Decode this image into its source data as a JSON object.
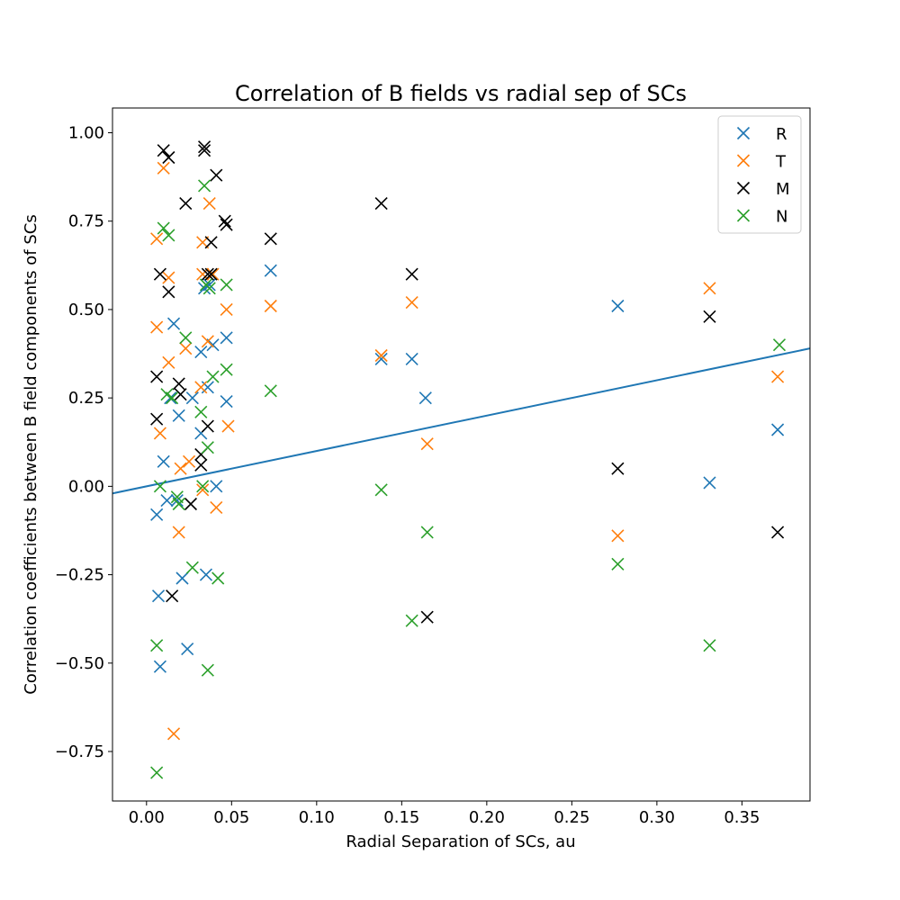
{
  "chart_data": {
    "type": "scatter",
    "title": "Correlation of B fields vs radial sep of SCs",
    "xlabel": "Radial Separation of SCs, au",
    "ylabel": "Correlation coefficients between B field components of SCs",
    "xlim": [
      -0.02,
      0.39
    ],
    "ylim": [
      -0.89,
      1.07
    ],
    "x_ticks": [
      0.0,
      0.05,
      0.1,
      0.15,
      0.2,
      0.25,
      0.3,
      0.35
    ],
    "x_tick_labels": [
      "0.00",
      "0.05",
      "0.10",
      "0.15",
      "0.20",
      "0.25",
      "0.30",
      "0.35"
    ],
    "y_ticks": [
      -0.75,
      -0.5,
      -0.25,
      0.0,
      0.25,
      0.5,
      0.75,
      1.0
    ],
    "y_tick_labels": [
      "−0.75",
      "−0.50",
      "−0.25",
      "0.00",
      "0.25",
      "0.50",
      "0.75",
      "1.00"
    ],
    "legend_position": "top-right",
    "grid": false,
    "series": [
      {
        "name": "R",
        "color": "#1f77b4",
        "marker": "x",
        "points": [
          [
            0.006,
            -0.08
          ],
          [
            0.008,
            -0.51
          ],
          [
            0.007,
            -0.31
          ],
          [
            0.01,
            0.07
          ],
          [
            0.012,
            -0.04
          ],
          [
            0.014,
            0.25
          ],
          [
            0.016,
            0.46
          ],
          [
            0.018,
            -0.04
          ],
          [
            0.019,
            0.2
          ],
          [
            0.021,
            -0.26
          ],
          [
            0.024,
            -0.46
          ],
          [
            0.027,
            0.25
          ],
          [
            0.032,
            0.38
          ],
          [
            0.032,
            0.15
          ],
          [
            0.034,
            0.56
          ],
          [
            0.035,
            -0.25
          ],
          [
            0.036,
            0.28
          ],
          [
            0.037,
            0.57
          ],
          [
            0.039,
            0.4
          ],
          [
            0.041,
            0.0
          ],
          [
            0.047,
            0.42
          ],
          [
            0.047,
            0.24
          ],
          [
            0.073,
            0.61
          ],
          [
            0.138,
            0.36
          ],
          [
            0.156,
            0.36
          ],
          [
            0.164,
            0.25
          ],
          [
            0.277,
            0.51
          ],
          [
            0.331,
            0.01
          ],
          [
            0.371,
            0.16
          ]
        ]
      },
      {
        "name": "T",
        "color": "#ff7f0e",
        "marker": "x",
        "points": [
          [
            0.006,
            0.7
          ],
          [
            0.006,
            0.45
          ],
          [
            0.008,
            0.15
          ],
          [
            0.01,
            0.9
          ],
          [
            0.013,
            0.59
          ],
          [
            0.013,
            0.35
          ],
          [
            0.016,
            -0.7
          ],
          [
            0.019,
            -0.13
          ],
          [
            0.02,
            0.05
          ],
          [
            0.023,
            0.39
          ],
          [
            0.025,
            0.07
          ],
          [
            0.032,
            0.28
          ],
          [
            0.033,
            0.6
          ],
          [
            0.033,
            0.69
          ],
          [
            0.033,
            -0.01
          ],
          [
            0.036,
            0.41
          ],
          [
            0.037,
            0.8
          ],
          [
            0.039,
            0.6
          ],
          [
            0.041,
            -0.06
          ],
          [
            0.047,
            0.5
          ],
          [
            0.048,
            0.17
          ],
          [
            0.073,
            0.51
          ],
          [
            0.138,
            0.37
          ],
          [
            0.156,
            0.52
          ],
          [
            0.165,
            0.12
          ],
          [
            0.277,
            -0.14
          ],
          [
            0.331,
            0.56
          ],
          [
            0.371,
            0.31
          ]
        ]
      },
      {
        "name": "M",
        "color": "#000000",
        "marker": "x",
        "points": [
          [
            0.006,
            0.31
          ],
          [
            0.006,
            0.19
          ],
          [
            0.008,
            0.6
          ],
          [
            0.01,
            0.95
          ],
          [
            0.013,
            0.93
          ],
          [
            0.013,
            0.55
          ],
          [
            0.015,
            -0.31
          ],
          [
            0.019,
            0.29
          ],
          [
            0.02,
            0.26
          ],
          [
            0.023,
            0.8
          ],
          [
            0.026,
            -0.05
          ],
          [
            0.032,
            0.09
          ],
          [
            0.032,
            0.06
          ],
          [
            0.034,
            0.96
          ],
          [
            0.034,
            0.95
          ],
          [
            0.036,
            0.6
          ],
          [
            0.036,
            0.17
          ],
          [
            0.038,
            0.6
          ],
          [
            0.038,
            0.69
          ],
          [
            0.041,
            0.88
          ],
          [
            0.046,
            0.75
          ],
          [
            0.047,
            0.74
          ],
          [
            0.073,
            0.7
          ],
          [
            0.138,
            0.8
          ],
          [
            0.156,
            0.6
          ],
          [
            0.165,
            -0.37
          ],
          [
            0.277,
            0.05
          ],
          [
            0.331,
            0.48
          ],
          [
            0.371,
            -0.13
          ]
        ]
      },
      {
        "name": "N",
        "color": "#2ca02c",
        "marker": "x",
        "points": [
          [
            0.006,
            -0.81
          ],
          [
            0.006,
            -0.45
          ],
          [
            0.008,
            0.0
          ],
          [
            0.01,
            0.73
          ],
          [
            0.012,
            0.26
          ],
          [
            0.013,
            0.71
          ],
          [
            0.015,
            0.25
          ],
          [
            0.018,
            -0.03
          ],
          [
            0.019,
            -0.05
          ],
          [
            0.023,
            0.42
          ],
          [
            0.027,
            -0.23
          ],
          [
            0.032,
            0.21
          ],
          [
            0.033,
            0.0
          ],
          [
            0.034,
            0.85
          ],
          [
            0.035,
            0.57
          ],
          [
            0.036,
            0.11
          ],
          [
            0.036,
            -0.52
          ],
          [
            0.037,
            0.56
          ],
          [
            0.039,
            0.31
          ],
          [
            0.042,
            -0.26
          ],
          [
            0.047,
            0.33
          ],
          [
            0.047,
            0.57
          ],
          [
            0.073,
            0.27
          ],
          [
            0.138,
            -0.01
          ],
          [
            0.156,
            -0.38
          ],
          [
            0.165,
            -0.13
          ],
          [
            0.277,
            -0.22
          ],
          [
            0.331,
            -0.45
          ],
          [
            0.372,
            0.4
          ]
        ]
      }
    ],
    "fit_line": {
      "color": "#1f77b4",
      "x": [
        -0.02,
        0.39
      ],
      "y": [
        -0.02,
        0.39
      ]
    }
  }
}
